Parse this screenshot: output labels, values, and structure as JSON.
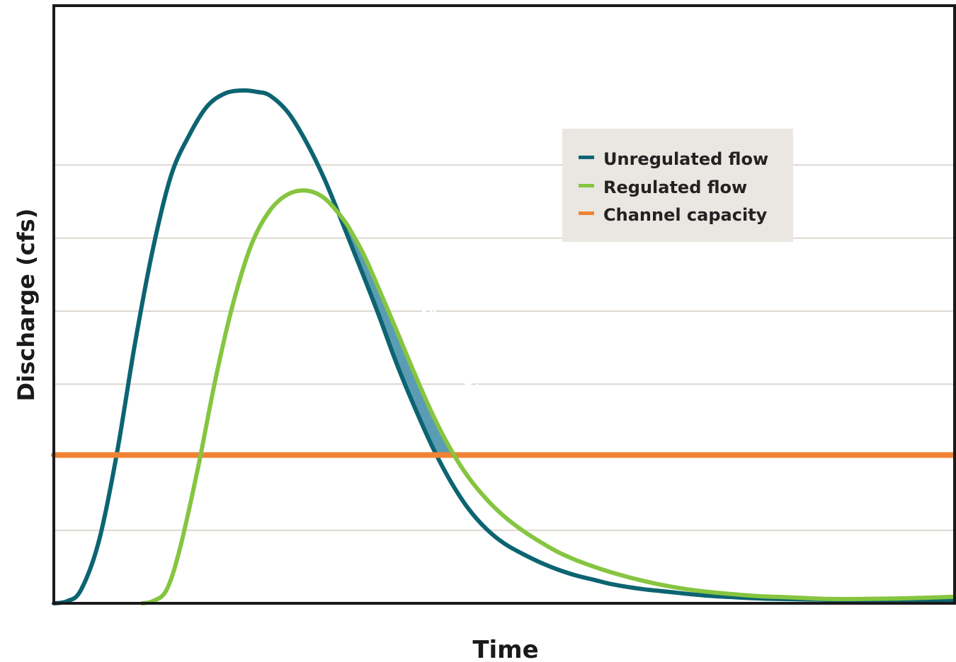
{
  "chart_data": {
    "type": "line",
    "title": "",
    "xlabel": "Time",
    "ylabel": "Discharge (cfs)",
    "x_tick_labels": false,
    "y_tick_labels": false,
    "xlim": [
      0,
      100
    ],
    "ylim": [
      0,
      7
    ],
    "grid": {
      "horizontal": true,
      "vertical": false,
      "y_lines": [
        1,
        3,
        4,
        5,
        6
      ]
    },
    "legend": {
      "placement": "top-right"
    },
    "series": [
      {
        "name": "Unregulated flow",
        "color": "#0c6471",
        "x": [
          0,
          1.5,
          3,
          5,
          7,
          9,
          11,
          13,
          15,
          17,
          19,
          21,
          22.6,
          24,
          26,
          28,
          30,
          32,
          34,
          36,
          38,
          40,
          42,
          44,
          46,
          48,
          50,
          52,
          54,
          56,
          58,
          60,
          62,
          65,
          68,
          72,
          76,
          80,
          85,
          90,
          95,
          100
        ],
        "y": [
          0,
          0.03,
          0.18,
          0.85,
          2.05,
          3.55,
          4.85,
          5.85,
          6.4,
          6.8,
          6.98,
          7.02,
          7.0,
          6.95,
          6.72,
          6.32,
          5.82,
          5.22,
          4.6,
          3.97,
          3.3,
          2.7,
          2.15,
          1.68,
          1.3,
          1.02,
          0.82,
          0.68,
          0.56,
          0.46,
          0.38,
          0.32,
          0.26,
          0.2,
          0.16,
          0.11,
          0.08,
          0.06,
          0.05,
          0.04,
          0.04,
          0.04
        ]
      },
      {
        "name": "Regulated flow",
        "color": "#86c540",
        "x": [
          9.8,
          11,
          12.5,
          14,
          16,
          18,
          20,
          22,
          24,
          26,
          28,
          30,
          32,
          33,
          34.5,
          36,
          38,
          40,
          42,
          44,
          46,
          48,
          50,
          52,
          54,
          56,
          58,
          60,
          62,
          65,
          68,
          71,
          74,
          78,
          82,
          86,
          90,
          95,
          100
        ],
        "y": [
          0,
          0.03,
          0.18,
          0.75,
          1.85,
          3.1,
          4.15,
          4.93,
          5.38,
          5.6,
          5.65,
          5.55,
          5.28,
          5.09,
          4.75,
          4.33,
          3.75,
          3.16,
          2.6,
          2.12,
          1.73,
          1.43,
          1.19,
          1.0,
          0.84,
          0.7,
          0.59,
          0.5,
          0.42,
          0.32,
          0.24,
          0.18,
          0.14,
          0.1,
          0.08,
          0.06,
          0.06,
          0.07,
          0.09
        ]
      },
      {
        "name": "Channel capacity",
        "color": "#f08234",
        "x": [
          0,
          100
        ],
        "y": [
          2.03,
          2.03
        ]
      }
    ],
    "annotations": [
      {
        "text": "Artificial flooding",
        "color": "#5b9cb5",
        "region": "between Regulated flow and Unregulated flow where Regulated flow exceeds Unregulated flow and Channel capacity"
      }
    ]
  },
  "styles": {
    "axis_color": "#1a1a1a",
    "grid_color": "#dcd6cf",
    "legend_background": "#eae6e1"
  }
}
